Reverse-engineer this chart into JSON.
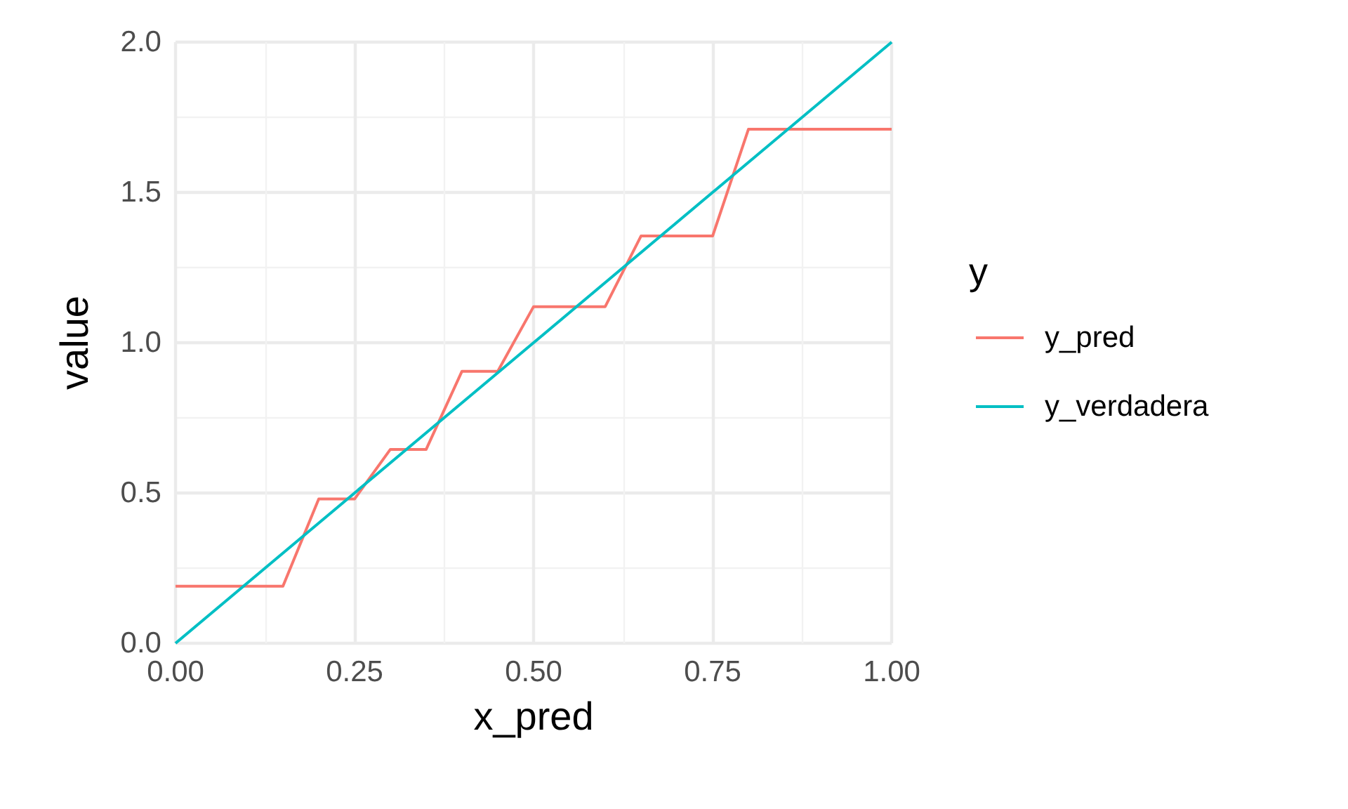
{
  "chart_data": {
    "type": "line",
    "xlabel": "x_pred",
    "ylabel": "value",
    "legend_title": "y",
    "legend": "right",
    "grid": true,
    "xlim": [
      0,
      1
    ],
    "xticks": [
      {
        "value": 0,
        "label": "0.00"
      },
      {
        "value": 0.25,
        "label": "0.25"
      },
      {
        "value": 0.5,
        "label": "0.50"
      },
      {
        "value": 0.75,
        "label": "0.75"
      },
      {
        "value": 1,
        "label": "1.00"
      }
    ],
    "ylim": [
      0,
      2
    ],
    "yticks": [
      {
        "value": 0,
        "label": "0.0"
      },
      {
        "value": 0.5,
        "label": "0.5"
      },
      {
        "value": 1,
        "label": "1.0"
      },
      {
        "value": 1.5,
        "label": "1.5"
      },
      {
        "value": 2,
        "label": "2.0"
      }
    ],
    "series": [
      {
        "name": "y_pred",
        "color": "#f8766d",
        "x": [
          0,
          0.15,
          0.2,
          0.25,
          0.3,
          0.35,
          0.4,
          0.45,
          0.5,
          0.6,
          0.65,
          0.75,
          0.8,
          1.0
        ],
        "values": [
          0.19,
          0.19,
          0.48,
          0.48,
          0.645,
          0.645,
          0.905,
          0.905,
          1.12,
          1.12,
          1.355,
          1.355,
          1.71,
          1.71
        ]
      },
      {
        "name": "y_verdadera",
        "color": "#00bfc4",
        "x": [
          0,
          1
        ],
        "values": [
          0,
          2
        ]
      }
    ]
  }
}
